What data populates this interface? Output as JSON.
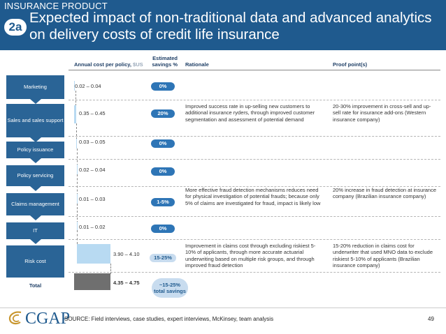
{
  "header": {
    "product": "INSURANCE PRODUCT",
    "badge": "2a",
    "title": "Expected impact of non-traditional data and advanced analytics on delivery costs of credit life insurance"
  },
  "columns": {
    "annual_label": "Annual cost per policy, ",
    "annual_unit": "$US",
    "estimated_line1": "Estimated",
    "estimated_line2": "savings %",
    "rationale": "Rationale",
    "proof": "Proof point(s)"
  },
  "rows": [
    {
      "category": "Marketing",
      "range": "0.02 – 0.04",
      "savings": "0%",
      "rationale": "",
      "proof": ""
    },
    {
      "category": "Sales and sales support",
      "range": "0.35 – 0.45",
      "savings": "20%",
      "rationale": "Improved success rate in up-selling new customers to additional insurance ryders, through improved customer segmentation and assessment of potential demand",
      "proof": "20-30% improvement in cross-sell and up-sell rate for insurance add-ons (Western insurance company)"
    },
    {
      "category": "Policy issuance",
      "range": "0.03 – 0.05",
      "savings": "0%",
      "rationale": "",
      "proof": ""
    },
    {
      "category": "Policy servicing",
      "range": "0.02 – 0.04",
      "savings": "0%",
      "rationale": "",
      "proof": ""
    },
    {
      "category": "Claims management",
      "range": "0.01 – 0.03",
      "savings": "1-5%",
      "rationale": "More effective fraud detection mechanisms reduces need for physical investigation of potential frauds; because only 5% of claims are investigated for fraud, impact is likely low",
      "proof": "20% increase in fraud detection at insurance company (Brazilian insurance company)"
    },
    {
      "category": "IT",
      "range": "0.01 – 0.02",
      "savings": "0%",
      "rationale": "",
      "proof": ""
    },
    {
      "category": "Risk cost",
      "range": "3.90 – 4.10",
      "savings": "15-25%",
      "rationale": "Improvement in claims cost through excluding riskiest 5-10% of applicants, through more accurate actuarial underwriting based on multiple risk groups, and through improved fraud detection",
      "proof": "15-20% reduction in claims cost for underwriter that used MNO data to exclude riskiest 5-10% of applicants (Brazilian insurance company)"
    }
  ],
  "total": {
    "label": "Total",
    "range": "4.35 – 4.75",
    "savings_line1": "~15-25%",
    "savings_line2": "total savings"
  },
  "footer": {
    "logo": "CGAP",
    "source": "SOURCE: Field interviews, case studies, expert interviews, McKinsey, team analysis",
    "page": "49"
  }
}
